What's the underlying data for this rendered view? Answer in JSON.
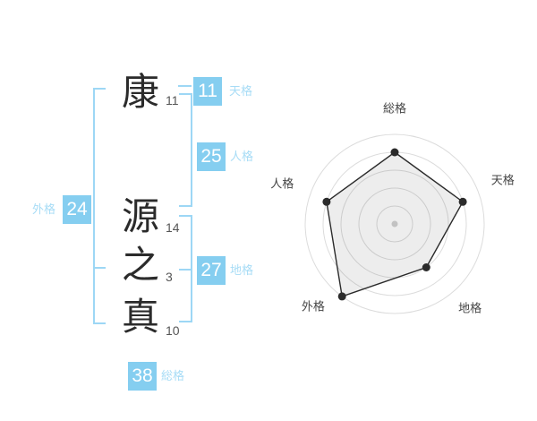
{
  "name_diagram": {
    "characters": [
      {
        "char": "康",
        "strokes": "11"
      },
      {
        "char": "源",
        "strokes": "14"
      },
      {
        "char": "之",
        "strokes": "3"
      },
      {
        "char": "真",
        "strokes": "10"
      }
    ],
    "badges": {
      "tenkaku": {
        "value": "11",
        "label": "天格"
      },
      "jinkaku": {
        "value": "25",
        "label": "人格"
      },
      "chikaku": {
        "value": "27",
        "label": "地格"
      },
      "gaikaku": {
        "value": "24",
        "label": "外格"
      },
      "soukaku": {
        "value": "38",
        "label": "総格"
      }
    },
    "colors": {
      "badge_bg": "#85CEF0",
      "label_text": "#A7DCF6",
      "bracket": "#9DD7F5"
    }
  },
  "chart_data": {
    "type": "radar",
    "categories": [
      "総格",
      "天格",
      "地格",
      "外格",
      "人格"
    ],
    "values": [
      4,
      4,
      3,
      5,
      4
    ],
    "max": 5,
    "rings": 5,
    "grid": true,
    "axis_lines": false,
    "legend": false,
    "colors": {
      "grid": "#dcdcdc",
      "line": "#2b2b2b",
      "center_dot": "#c2c2c2"
    }
  }
}
